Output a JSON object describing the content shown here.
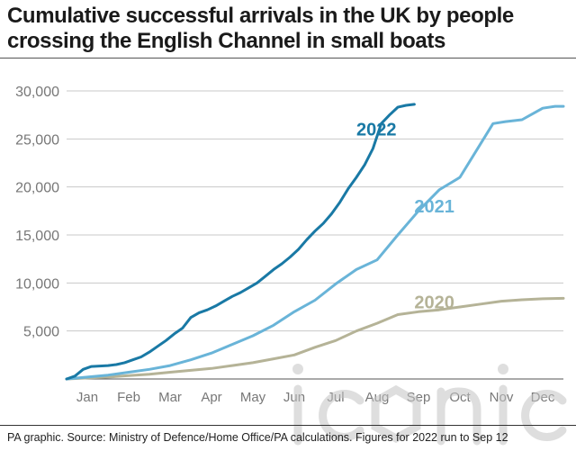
{
  "title": "Cumulative successful arrivals in the UK by people crossing the English Channel in small boats",
  "source": "PA graphic. Source: Ministry of Defence/Home Office/PA calculations. Figures for 2022 run to Sep 12",
  "watermark_text": "iconic",
  "colors": {
    "2022": "#1979a5",
    "2021": "#69b4d8",
    "2020": "#b5b397",
    "grid": "#c8c8c8",
    "axis_text": "#777777",
    "watermark": "#bdbdbd"
  },
  "chart_data": {
    "type": "line",
    "title": "Cumulative successful arrivals in the UK by people crossing the English Channel in small boats",
    "xlabel": "",
    "ylabel": "",
    "x_unit": "month",
    "xlim": [
      0,
      12
    ],
    "ylim": [
      0,
      30000
    ],
    "x_tick_labels": [
      "Jan",
      "Feb",
      "Mar",
      "Apr",
      "May",
      "Jun",
      "Jul",
      "Aug",
      "Sep",
      "Oct",
      "Nov",
      "Dec"
    ],
    "y_ticks": [
      0,
      5000,
      10000,
      15000,
      20000,
      25000,
      30000
    ],
    "y_tick_labels": [
      "",
      "5,000",
      "10,000",
      "15,000",
      "20,000",
      "25,000",
      "30,000"
    ],
    "grid": true,
    "series": [
      {
        "name": "2022",
        "x": [
          0.0,
          0.2,
          0.4,
          0.6,
          0.8,
          1.0,
          1.2,
          1.4,
          1.6,
          1.8,
          2.0,
          2.2,
          2.4,
          2.6,
          2.8,
          3.0,
          3.2,
          3.4,
          3.6,
          3.8,
          4.0,
          4.2,
          4.4,
          4.6,
          4.8,
          5.0,
          5.2,
          5.4,
          5.6,
          5.8,
          6.0,
          6.2,
          6.4,
          6.6,
          6.8,
          7.0,
          7.2,
          7.4,
          7.6,
          7.8,
          8.0,
          8.2,
          8.4
        ],
        "values": [
          0,
          300,
          1000,
          1300,
          1350,
          1400,
          1500,
          1700,
          2000,
          2300,
          2800,
          3400,
          4000,
          4700,
          5300,
          6400,
          6900,
          7200,
          7600,
          8100,
          8600,
          9000,
          9500,
          10000,
          10700,
          11400,
          12000,
          12700,
          13500,
          14500,
          15400,
          16200,
          17200,
          18400,
          19800,
          21000,
          22300,
          24000,
          26600,
          27500,
          28300,
          28500,
          28600
        ]
      },
      {
        "name": "2021",
        "x": [
          0.0,
          0.5,
          1.0,
          1.5,
          2.0,
          2.5,
          3.0,
          3.5,
          4.0,
          4.5,
          5.0,
          5.5,
          6.0,
          6.5,
          7.0,
          7.5,
          8.0,
          8.5,
          9.0,
          9.5,
          10.0,
          10.3,
          10.6,
          11.0,
          11.5,
          11.8,
          12.0
        ],
        "values": [
          0,
          200,
          400,
          700,
          1000,
          1400,
          2000,
          2700,
          3600,
          4500,
          5600,
          7000,
          8200,
          9900,
          11400,
          12400,
          15000,
          17500,
          19700,
          21000,
          24500,
          26600,
          26800,
          27000,
          28200,
          28400,
          28400
        ]
      },
      {
        "name": "2020",
        "x": [
          0.0,
          0.5,
          1.0,
          1.5,
          2.0,
          2.5,
          3.0,
          3.5,
          4.0,
          4.5,
          5.0,
          5.5,
          6.0,
          6.5,
          7.0,
          7.5,
          8.0,
          8.5,
          9.0,
          9.5,
          10.0,
          10.5,
          11.0,
          11.5,
          12.0
        ],
        "values": [
          0,
          100,
          200,
          350,
          500,
          700,
          900,
          1100,
          1400,
          1700,
          2100,
          2500,
          3300,
          4000,
          5000,
          5800,
          6700,
          7000,
          7200,
          7500,
          7800,
          8100,
          8250,
          8350,
          8400
        ]
      }
    ],
    "annotations": [
      {
        "text": "2022",
        "series": "2022"
      },
      {
        "text": "2021",
        "series": "2021"
      },
      {
        "text": "2020",
        "series": "2020"
      }
    ]
  }
}
